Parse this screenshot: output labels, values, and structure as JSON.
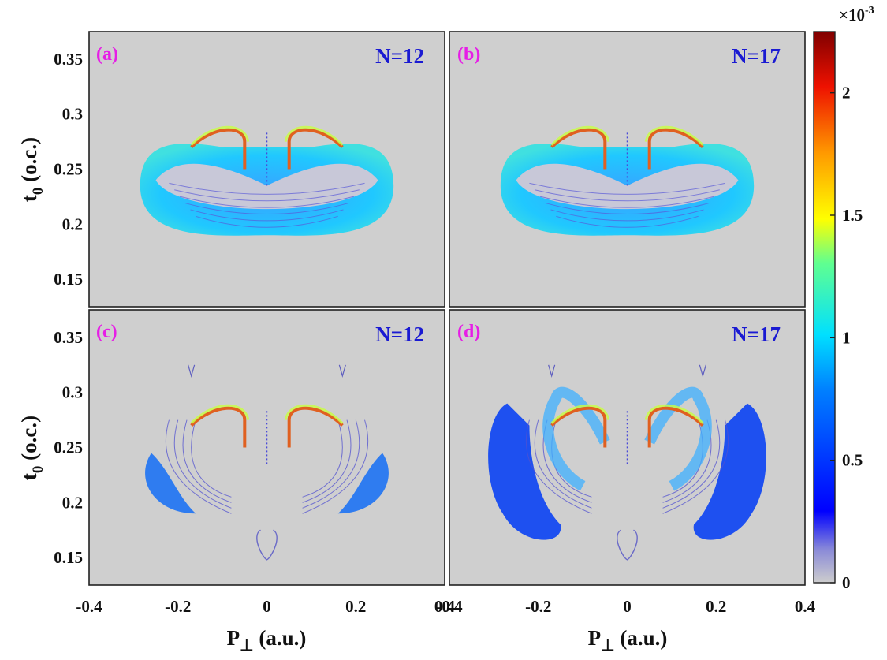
{
  "colors": {
    "panel_background": "#cfcfcf",
    "panel_label": "#e61ee6",
    "n_label": "#1a1ad2"
  },
  "axes": {
    "xlabel_main": "P",
    "xlabel_sub": "⊥",
    "xlabel_unit": " (a.u.)",
    "ylabel_main": "t",
    "ylabel_sub": "0",
    "ylabel_unit": " (o.c.)",
    "x_ticks": [
      "-0.4",
      "-0.2",
      "0",
      "0.2",
      "0.4"
    ],
    "y_ticks": [
      "0.15",
      "0.2",
      "0.25",
      "0.3",
      "0.35"
    ]
  },
  "colorbar": {
    "multiplier_base": "×10",
    "multiplier_exp": "-3",
    "ticks": [
      "0",
      "0.5",
      "1",
      "1.5",
      "2"
    ],
    "range": [
      0,
      2.25
    ]
  },
  "chart_data": [
    {
      "type": "heatmap",
      "panel": "(a)",
      "annotation": "N=12",
      "x_range": [
        -0.4,
        0.4
      ],
      "y_range": [
        0.125,
        0.375
      ],
      "lobes": [
        {
          "x": -0.24,
          "y": 0.235,
          "value": 0.8
        },
        {
          "x": 0.24,
          "y": 0.235,
          "value": 0.8
        },
        {
          "x": -0.06,
          "y": 0.27,
          "value": 2.0
        },
        {
          "x": 0.06,
          "y": 0.27,
          "value": 2.0
        }
      ]
    },
    {
      "type": "heatmap",
      "panel": "(b)",
      "annotation": "N=17",
      "x_range": [
        -0.4,
        0.4
      ],
      "y_range": [
        0.125,
        0.375
      ],
      "lobes": [
        {
          "x": -0.24,
          "y": 0.235,
          "value": 0.8
        },
        {
          "x": 0.24,
          "y": 0.235,
          "value": 0.8
        },
        {
          "x": -0.06,
          "y": 0.27,
          "value": 2.0
        },
        {
          "x": 0.06,
          "y": 0.27,
          "value": 2.0
        }
      ]
    },
    {
      "type": "heatmap",
      "panel": "(c)",
      "annotation": "N=12",
      "x_range": [
        -0.4,
        0.4
      ],
      "y_range": [
        0.125,
        0.375
      ],
      "lobes": [
        {
          "x": -0.22,
          "y": 0.215,
          "value": 0.6
        },
        {
          "x": 0.22,
          "y": 0.215,
          "value": 0.6
        },
        {
          "x": -0.06,
          "y": 0.27,
          "value": 2.0
        },
        {
          "x": 0.06,
          "y": 0.27,
          "value": 2.0
        }
      ]
    },
    {
      "type": "heatmap",
      "panel": "(d)",
      "annotation": "N=17",
      "x_range": [
        -0.4,
        0.4
      ],
      "y_range": [
        0.125,
        0.375
      ],
      "lobes": [
        {
          "x": -0.24,
          "y": 0.24,
          "value": 0.5
        },
        {
          "x": 0.24,
          "y": 0.24,
          "value": 0.5
        },
        {
          "x": -0.06,
          "y": 0.27,
          "value": 2.0
        },
        {
          "x": 0.06,
          "y": 0.27,
          "value": 2.0
        }
      ]
    }
  ]
}
